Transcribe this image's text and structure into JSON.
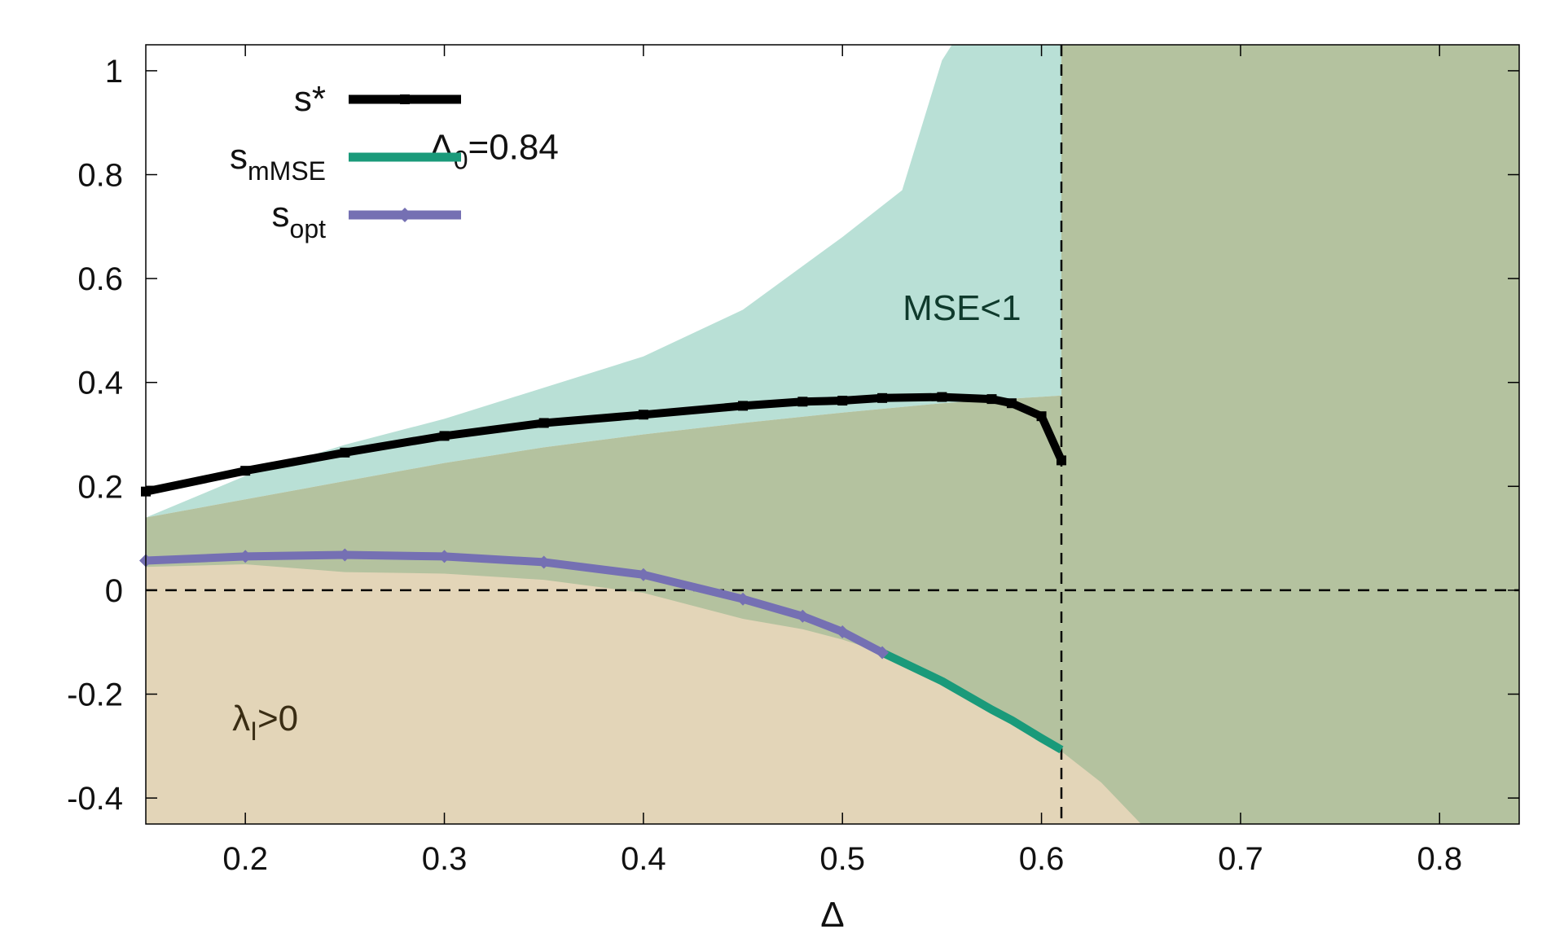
{
  "chart_data": {
    "type": "line",
    "title": "",
    "xlabel": "Δ",
    "ylabel": "",
    "xlim": [
      0.15,
      0.84
    ],
    "ylim": [
      -0.45,
      1.05
    ],
    "x_ticks": [
      0.2,
      0.3,
      0.4,
      0.5,
      0.6,
      0.7,
      0.8
    ],
    "x_tick_labels": [
      "0.2",
      "0.3",
      "0.4",
      "0.5",
      "0.6",
      "0.7",
      "0.8"
    ],
    "y_ticks": [
      -0.4,
      -0.2,
      0,
      0.2,
      0.4,
      0.6,
      0.8,
      1
    ],
    "y_tick_labels": [
      "-0.4",
      "-0.2",
      "0",
      "0.2",
      "0.4",
      "0.6",
      "0.8",
      "1"
    ],
    "grid": false,
    "legend_position": "top-left",
    "colors": {
      "s_star": "#000000",
      "s_mMSE": "#1a9a7a",
      "s_opt": "#7570b3",
      "mse_region": "#b9e0d6",
      "lambda_region": "#e3d5b8",
      "overlap_region": "#b4c29f",
      "reference_lines": "#000000"
    },
    "series": [
      {
        "name": "s*",
        "legend_main": "s*",
        "legend_sub": "",
        "marker": "square",
        "x": [
          0.15,
          0.2,
          0.25,
          0.3,
          0.35,
          0.4,
          0.45,
          0.48,
          0.5,
          0.52,
          0.55,
          0.575,
          0.585,
          0.6,
          0.61
        ],
        "y": [
          0.19,
          0.23,
          0.265,
          0.297,
          0.322,
          0.338,
          0.355,
          0.363,
          0.365,
          0.37,
          0.372,
          0.368,
          0.36,
          0.335,
          0.25
        ]
      },
      {
        "name": "s_mMSE",
        "legend_main": "s",
        "legend_sub": "mMSE",
        "marker": "none",
        "x": [
          0.52,
          0.55,
          0.575,
          0.585,
          0.6,
          0.61
        ],
        "y": [
          -0.12,
          -0.175,
          -0.23,
          -0.25,
          -0.285,
          -0.307
        ]
      },
      {
        "name": "s_opt",
        "legend_main": "s",
        "legend_sub": "opt",
        "marker": "diamond",
        "x": [
          0.15,
          0.2,
          0.25,
          0.3,
          0.35,
          0.4,
          0.45,
          0.48,
          0.5,
          0.52
        ],
        "y": [
          0.057,
          0.065,
          0.068,
          0.065,
          0.054,
          0.03,
          -0.017,
          -0.05,
          -0.08,
          -0.12
        ]
      }
    ],
    "regions": [
      {
        "name": "MSE<1",
        "upper": {
          "x": [
            0.15,
            0.2,
            0.25,
            0.3,
            0.35,
            0.4,
            0.45,
            0.5,
            0.53,
            0.55,
            0.555,
            0.61
          ],
          "y": [
            0.14,
            0.22,
            0.28,
            0.33,
            0.39,
            0.45,
            0.54,
            0.68,
            0.77,
            1.02,
            1.05,
            1.05
          ]
        },
        "lower": {
          "x": [
            0.15,
            0.2,
            0.25,
            0.3,
            0.35,
            0.4,
            0.45,
            0.5,
            0.55,
            0.61
          ],
          "y": [
            0.14,
            0.175,
            0.21,
            0.245,
            0.275,
            0.3,
            0.322,
            0.342,
            0.36,
            0.375
          ]
        }
      },
      {
        "name": "λ_I>0",
        "upper": {
          "x": [
            0.15,
            0.2,
            0.25,
            0.3,
            0.35,
            0.4,
            0.45,
            0.48,
            0.5,
            0.52,
            0.55,
            0.58,
            0.6,
            0.61,
            0.63,
            0.65
          ],
          "y": [
            0.045,
            0.05,
            0.035,
            0.032,
            0.02,
            -0.005,
            -0.055,
            -0.075,
            -0.095,
            -0.12,
            -0.18,
            -0.24,
            -0.28,
            -0.31,
            -0.37,
            -0.45
          ]
        },
        "lower_y": -0.45
      }
    ],
    "reference_lines": [
      {
        "orientation": "horizontal",
        "y": 0,
        "style": "dashed"
      },
      {
        "orientation": "vertical",
        "x": 0.61,
        "style": "dashed"
      }
    ],
    "annotations": [
      {
        "id": "delta0",
        "main": "Δ",
        "sub": "0",
        "tail": "=0.84",
        "x": 0.325,
        "y": 0.83
      },
      {
        "id": "mse",
        "main": "MSE<1",
        "sub": "",
        "tail": "",
        "x": 0.56,
        "y": 0.52
      },
      {
        "id": "lambda",
        "main": "λ",
        "sub": "I",
        "tail": ">0",
        "x": 0.21,
        "y": -0.27
      }
    ]
  }
}
